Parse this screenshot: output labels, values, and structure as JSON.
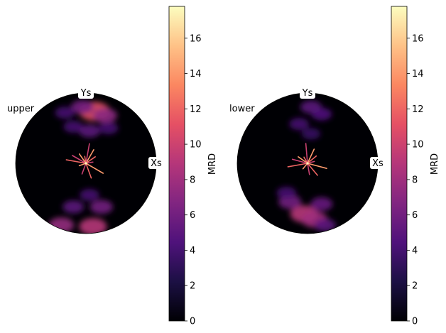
{
  "chart_data": [
    {
      "type": "heatmap",
      "subtype": "pole-figure",
      "title": "upper",
      "axis_labels": {
        "x": "Xs",
        "y": "Ys"
      },
      "colormap": "magma",
      "colorbar": {
        "label": "MRD",
        "range": [
          0,
          17.8
        ],
        "ticks": [
          0,
          2,
          4,
          6,
          8,
          10,
          12,
          14,
          16
        ],
        "tick_labels": [
          "0",
          "2",
          "4",
          "6",
          "8",
          "10",
          "12",
          "14",
          "16"
        ]
      },
      "density_peaks": [
        {
          "x": 0.12,
          "y": 0.74,
          "level": 11.0
        },
        {
          "x": -0.05,
          "y": 0.8,
          "level": 6.0
        },
        {
          "x": 0.27,
          "y": 0.68,
          "level": 7.0
        },
        {
          "x": -0.18,
          "y": 0.52,
          "level": 4.0
        },
        {
          "x": 0.05,
          "y": 0.46,
          "level": 5.0
        },
        {
          "x": 0.32,
          "y": 0.5,
          "level": 4.0
        },
        {
          "x": -0.3,
          "y": 0.72,
          "level": 4.0
        },
        {
          "x": 0.1,
          "y": -0.9,
          "level": 9.0
        },
        {
          "x": -0.35,
          "y": -0.88,
          "level": 7.5
        },
        {
          "x": 0.22,
          "y": -0.62,
          "level": 6.0
        },
        {
          "x": -0.18,
          "y": -0.62,
          "level": 5.0
        },
        {
          "x": 0.05,
          "y": -0.45,
          "level": 4.0
        }
      ],
      "center_peak": {
        "level": 17.8
      }
    },
    {
      "type": "heatmap",
      "subtype": "pole-figure",
      "title": "lower",
      "axis_labels": {
        "x": "Xs",
        "y": "Ys"
      },
      "colormap": "magma",
      "colorbar": {
        "label": "MRD",
        "range": [
          0,
          17.8
        ],
        "ticks": [
          0,
          2,
          4,
          6,
          8,
          10,
          12,
          14,
          16
        ],
        "tick_labels": [
          "0",
          "2",
          "4",
          "6",
          "8",
          "10",
          "12",
          "14",
          "16"
        ]
      },
      "density_peaks": [
        {
          "x": 0.05,
          "y": 0.8,
          "level": 5.0
        },
        {
          "x": 0.2,
          "y": 0.7,
          "level": 4.5
        },
        {
          "x": -0.12,
          "y": 0.56,
          "level": 4.0
        },
        {
          "x": 0.05,
          "y": 0.42,
          "level": 3.5
        },
        {
          "x": -0.05,
          "y": -0.72,
          "level": 9.0
        },
        {
          "x": 0.1,
          "y": -0.8,
          "level": 8.0
        },
        {
          "x": -0.25,
          "y": -0.55,
          "level": 6.0
        },
        {
          "x": 0.2,
          "y": -0.58,
          "level": 5.5
        },
        {
          "x": -0.3,
          "y": -0.42,
          "level": 4.0
        },
        {
          "x": 0.25,
          "y": -0.88,
          "level": 5.0
        }
      ],
      "center_peak": {
        "level": 17.8
      }
    }
  ]
}
